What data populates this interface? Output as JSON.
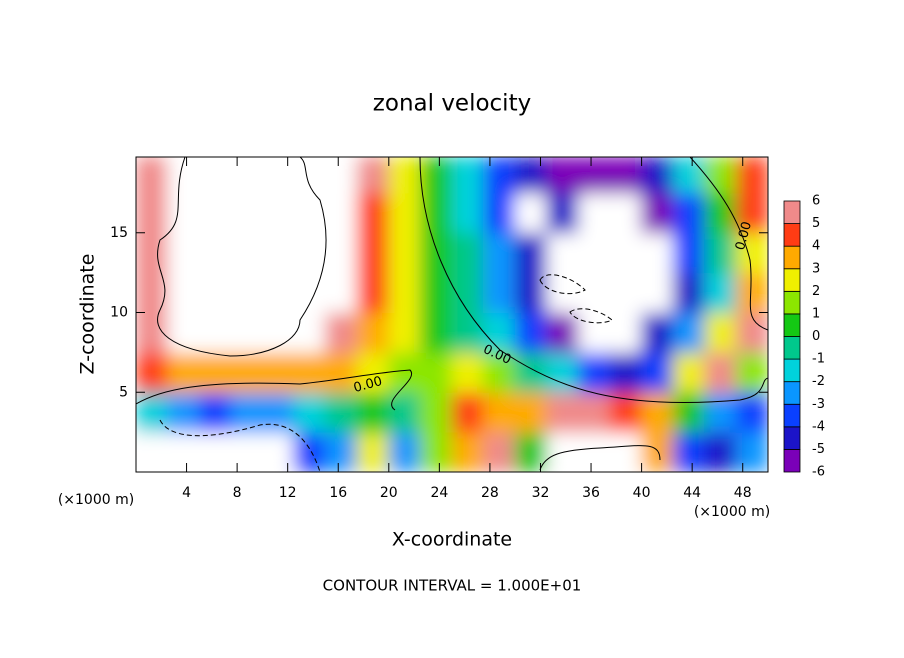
{
  "chart_data": {
    "type": "contourf",
    "title": "zonal velocity",
    "x_label": "X-coordinate",
    "y_label": "Z-coordinate",
    "x_unit": "(×1000 m)",
    "footer": "CONTOUR INTERVAL = 1.000E+01",
    "contour_labels": [
      "0.00",
      "0.00",
      "0.00"
    ],
    "xlim": [
      0,
      50
    ],
    "ylim": [
      0,
      19.75
    ],
    "xticks": [
      4,
      8,
      12,
      16,
      20,
      24,
      28,
      32,
      36,
      40,
      44,
      48
    ],
    "yticks": [
      5,
      10,
      15
    ],
    "x_edges": [
      0,
      2.5,
      5,
      7.5,
      10,
      12.5,
      15,
      17.5,
      20,
      22.5,
      25,
      27.5,
      30,
      32.5,
      35,
      37.5,
      40,
      42.5,
      45,
      47.5,
      50
    ],
    "y_edges": [
      0,
      2.5,
      5,
      7.5,
      10,
      12.5,
      15,
      17.5,
      19.75
    ],
    "z": [
      [
        -8,
        -8,
        -8,
        -8,
        -8,
        -4,
        -3,
        2,
        -3,
        1,
        3,
        5,
        0,
        8,
        8,
        8,
        3,
        -4,
        -5,
        -3
      ],
      [
        -2,
        -3,
        -4,
        -3,
        -3,
        -2,
        -1,
        0,
        -1,
        1,
        4,
        3,
        3,
        5,
        5,
        4,
        3,
        0,
        -3,
        -4
      ],
      [
        4,
        3,
        3,
        3,
        3,
        3,
        3,
        2,
        1,
        1,
        2,
        1,
        -1,
        -2,
        -4,
        -5,
        -4,
        2,
        5,
        1
      ],
      [
        6,
        7,
        7,
        7,
        7,
        7,
        5,
        3.5,
        2,
        0.5,
        -0.5,
        -2,
        -4,
        -6,
        -8,
        -8,
        -5,
        -3,
        2,
        5
      ],
      [
        5,
        8,
        8,
        8,
        8,
        8,
        6.5,
        4,
        2,
        0.5,
        -1,
        -2.5,
        -5,
        -8,
        -8,
        -8,
        -7,
        -5,
        -2,
        3
      ],
      [
        5,
        8,
        8,
        8,
        8,
        8,
        7,
        4,
        2,
        0.5,
        -1,
        -3,
        -5,
        -8,
        -8,
        -8,
        -7,
        -4,
        -1,
        2
      ],
      [
        6,
        8,
        8,
        8,
        8,
        8,
        8,
        4.5,
        2,
        0.5,
        -1.5,
        -3.5,
        -8,
        -5,
        -8,
        -8,
        -6,
        -4,
        0,
        4
      ],
      [
        5,
        8,
        8,
        8,
        8,
        8,
        8,
        5,
        2,
        0,
        -2,
        -4,
        -5,
        -6,
        -6,
        -6,
        -5,
        -2,
        1,
        4
      ]
    ],
    "colorbar": {
      "levels": [
        -6,
        -5,
        -4,
        -3,
        -2,
        -1,
        0,
        1,
        2,
        3,
        4,
        5,
        6
      ],
      "colors": [
        "#7a00b8",
        "#1c14c8",
        "#0a40ff",
        "#0a96ff",
        "#00d2dc",
        "#00c88c",
        "#14c814",
        "#8ce600",
        "#f0f000",
        "#ffaa00",
        "#ff3c14",
        "#f08a8a"
      ]
    }
  }
}
